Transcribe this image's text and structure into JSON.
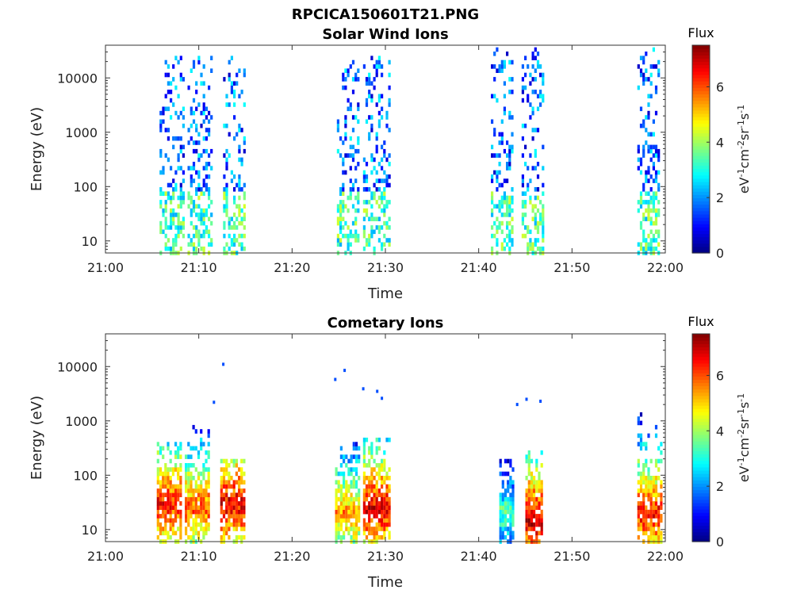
{
  "figure_title": "RPCICA150601T21.PNG",
  "chart_data": [
    {
      "type": "heatmap",
      "title": "Solar Wind Ions",
      "xlabel": "Time",
      "ylabel": "Energy (eV)",
      "x_ticks": [
        "21:00",
        "21:10",
        "21:20",
        "21:30",
        "21:40",
        "21:50",
        "22:00"
      ],
      "xlim_minutes": [
        0,
        60
      ],
      "y_scale": "log",
      "y_ticks": [
        {
          "value": 10,
          "label": "10"
        },
        {
          "value": 100,
          "label": "100"
        },
        {
          "value": 1000,
          "label": "1000"
        },
        {
          "value": 10000,
          "label": "10000"
        }
      ],
      "ylim": [
        6,
        40000
      ],
      "colorbar": {
        "title": "Flux",
        "unit_label": "eV-1cm-2sr-1s-1",
        "range": [
          0,
          7.5
        ],
        "ticks": [
          "0",
          "2",
          "4",
          "6"
        ],
        "colormap": "jet"
      },
      "bursts": [
        {
          "t_start": 5.8,
          "t_end": 8.3,
          "e_low": 6,
          "e_high": 25000,
          "mean_flux": 1.4
        },
        {
          "t_start": 8.8,
          "t_end": 11.4,
          "e_low": 6,
          "e_high": 25000,
          "mean_flux": 1.5
        },
        {
          "t_start": 12.6,
          "t_end": 14.9,
          "e_low": 6,
          "e_high": 25000,
          "mean_flux": 1.5
        },
        {
          "t_start": 24.8,
          "t_end": 27.0,
          "e_low": 6,
          "e_high": 25000,
          "mean_flux": 1.3
        },
        {
          "t_start": 27.6,
          "t_end": 30.3,
          "e_low": 6,
          "e_high": 25000,
          "mean_flux": 1.3
        },
        {
          "t_start": 41.3,
          "t_end": 43.6,
          "e_low": 6,
          "e_high": 35000,
          "mean_flux": 1.2
        },
        {
          "t_start": 44.6,
          "t_end": 47.0,
          "e_low": 6,
          "e_high": 35000,
          "mean_flux": 1.5
        },
        {
          "t_start": 57.0,
          "t_end": 59.3,
          "e_low": 6,
          "e_high": 35000,
          "mean_flux": 1.7
        }
      ]
    },
    {
      "type": "heatmap",
      "title": "Cometary Ions",
      "xlabel": "Time",
      "ylabel": "Energy (eV)",
      "x_ticks": [
        "21:00",
        "21:10",
        "21:20",
        "21:30",
        "21:40",
        "21:50",
        "22:00"
      ],
      "xlim_minutes": [
        0,
        60
      ],
      "y_scale": "log",
      "y_ticks": [
        {
          "value": 10,
          "label": "10"
        },
        {
          "value": 100,
          "label": "100"
        },
        {
          "value": 1000,
          "label": "1000"
        },
        {
          "value": 10000,
          "label": "10000"
        }
      ],
      "ylim": [
        6,
        40000
      ],
      "colorbar": {
        "title": "Flux",
        "unit_label": "eV-1cm-2sr-1s-1",
        "range": [
          0,
          7.5
        ],
        "ticks": [
          "0",
          "2",
          "4",
          "6"
        ],
        "colormap": "jet"
      },
      "bursts": [
        {
          "t_start": 5.5,
          "t_end": 8.0,
          "e_low": 6,
          "e_high": 400,
          "peak_energy": 30,
          "peak_flux": 6.5
        },
        {
          "t_start": 8.5,
          "t_end": 11.0,
          "e_low": 6,
          "e_high": 800,
          "peak_energy": 25,
          "peak_flux": 6.0
        },
        {
          "t_start": 12.3,
          "t_end": 14.8,
          "e_low": 6,
          "e_high": 200,
          "peak_energy": 30,
          "peak_flux": 6.8
        },
        {
          "t_start": 24.6,
          "t_end": 27.2,
          "e_low": 6,
          "e_high": 400,
          "peak_energy": 20,
          "peak_flux": 5.5
        },
        {
          "t_start": 27.6,
          "t_end": 30.5,
          "e_low": 6,
          "e_high": 500,
          "peak_energy": 25,
          "peak_flux": 6.8
        },
        {
          "t_start": 42.2,
          "t_end": 43.6,
          "e_low": 6,
          "e_high": 300,
          "peak_energy": 20,
          "peak_flux": 3.5
        },
        {
          "t_start": 45.0,
          "t_end": 46.8,
          "e_low": 6,
          "e_high": 300,
          "peak_energy": 15,
          "peak_flux": 7.0
        },
        {
          "t_start": 57.0,
          "t_end": 59.6,
          "e_low": 6,
          "e_high": 1500,
          "peak_energy": 20,
          "peak_flux": 6.5
        }
      ],
      "sparse_high_energy_points": [
        {
          "t": 12.5,
          "e": 11000
        },
        {
          "t": 11.5,
          "e": 2200
        },
        {
          "t": 24.5,
          "e": 5800
        },
        {
          "t": 25.5,
          "e": 8500
        },
        {
          "t": 27.5,
          "e": 3900
        },
        {
          "t": 29.0,
          "e": 3500
        },
        {
          "t": 29.5,
          "e": 2600
        },
        {
          "t": 44.0,
          "e": 2000
        },
        {
          "t": 45.0,
          "e": 2500
        },
        {
          "t": 46.5,
          "e": 2300
        }
      ]
    }
  ]
}
